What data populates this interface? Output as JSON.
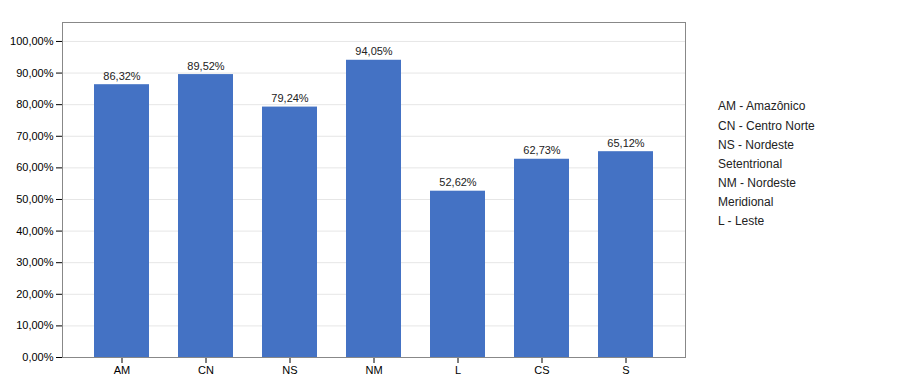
{
  "chart_data": {
    "type": "bar",
    "categories": [
      "AM",
      "CN",
      "NS",
      "NM",
      "L",
      "CS",
      "S"
    ],
    "values": [
      86.32,
      89.52,
      79.24,
      94.05,
      52.62,
      62.73,
      65.12
    ],
    "value_labels": [
      "86,32%",
      "89,52%",
      "79,24%",
      "94,05%",
      "52,62%",
      "62,73%",
      "65,12%"
    ],
    "data_labels": true,
    "color": "#4472C4",
    "ylim": [
      0,
      106
    ],
    "yticks": [
      {
        "value": 0,
        "label": "0,00%"
      },
      {
        "value": 10,
        "label": "10,00%"
      },
      {
        "value": 20,
        "label": "20,00%"
      },
      {
        "value": 30,
        "label": "30,00%"
      },
      {
        "value": 40,
        "label": "40,00%"
      },
      {
        "value": 50,
        "label": "50,00%"
      },
      {
        "value": 60,
        "label": "60,00%"
      },
      {
        "value": 70,
        "label": "70,00%"
      },
      {
        "value": 80,
        "label": "80,00%"
      },
      {
        "value": 90,
        "label": "90,00%"
      },
      {
        "value": 100,
        "label": "100,00%"
      }
    ],
    "grid": true,
    "annotations": [
      "AM - Amazônico",
      "CN - Centro Norte",
      "NS - Nordeste",
      "Setentrional",
      "NM - Nordeste",
      "Meridional",
      "L - Leste"
    ]
  }
}
